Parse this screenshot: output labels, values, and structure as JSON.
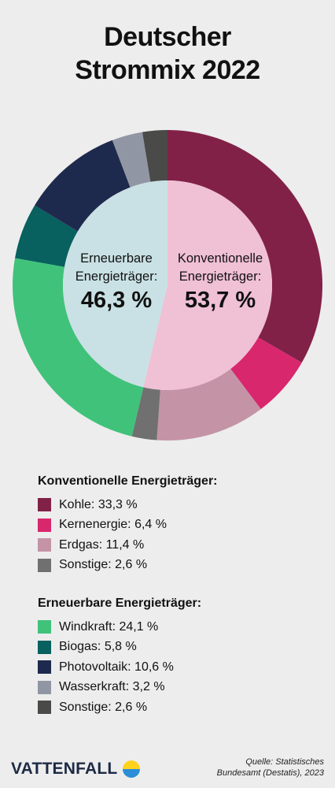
{
  "title": {
    "line1": "Deutscher",
    "line2": "Strommix 2022"
  },
  "chart_data": {
    "type": "pie",
    "style": "donut",
    "groups": [
      {
        "name": "Erneuerbare Energieträger:",
        "value_label": "46,3 %",
        "value": 46.3,
        "color": "#c9e1e4"
      },
      {
        "name": "Konventionelle Energieträger:",
        "value_label": "53,7 %",
        "value": 53.7,
        "color": "#f0c0d5"
      }
    ],
    "slices": [
      {
        "label": "Kohle",
        "value": 33.3,
        "color": "#822148"
      },
      {
        "label": "Kernenergie",
        "value": 6.4,
        "color": "#d8276d"
      },
      {
        "label": "Erdgas",
        "value": 11.4,
        "color": "#c493a6"
      },
      {
        "label": "Sonstige",
        "value": 2.6,
        "color": "#707070"
      },
      {
        "label": "Windkraft",
        "value": 24.1,
        "color": "#40c27a"
      },
      {
        "label": "Biogas",
        "value": 5.8,
        "color": "#08605f"
      },
      {
        "label": "Photovoltaik",
        "value": 10.6,
        "color": "#1e2a4d"
      },
      {
        "label": "Wasserkraft",
        "value": 3.2,
        "color": "#9196a4"
      },
      {
        "label": "Sonstige",
        "value": 2.6,
        "color": "#4a4a48"
      }
    ]
  },
  "legend": {
    "conventional": {
      "heading": "Konventionelle Energieträger:",
      "items": [
        {
          "text": "Kohle: 33,3 %",
          "color": "#822148"
        },
        {
          "text": "Kernenergie: 6,4 %",
          "color": "#d8276d"
        },
        {
          "text": "Erdgas: 11,4 %",
          "color": "#c493a6"
        },
        {
          "text": "Sonstige: 2,6 %",
          "color": "#707070"
        }
      ]
    },
    "renewable": {
      "heading": "Erneuerbare Energieträger:",
      "items": [
        {
          "text": "Windkraft: 24,1 %",
          "color": "#40c27a"
        },
        {
          "text": "Biogas: 5,8 %",
          "color": "#08605f"
        },
        {
          "text": "Photovoltaik: 10,6 %",
          "color": "#1e2a4d"
        },
        {
          "text": "Wasserkraft: 3,2 %",
          "color": "#9196a4"
        },
        {
          "text": "Sonstige: 2,6 %",
          "color": "#4a4a48"
        }
      ]
    }
  },
  "footer": {
    "brand": "VATTENFALL",
    "brand_icon": "vattenfall-logo-icon",
    "source_line1": "Quelle: Statistisches",
    "source_line2": "Bundesamt (Destatis), 2023"
  }
}
